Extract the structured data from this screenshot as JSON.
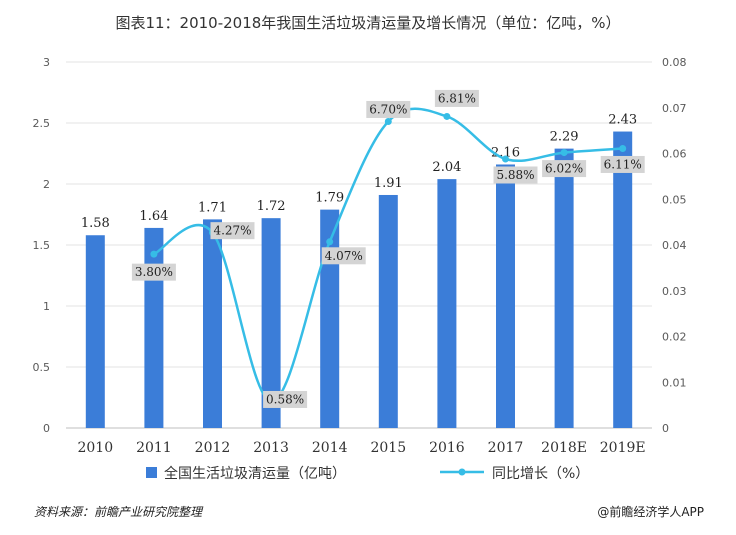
{
  "chart_data": {
    "type": "bar+line",
    "title": "图表11：2010-2018年我国生活垃圾清运量及增长情况（单位：亿吨，%）",
    "categories": [
      "2010",
      "2011",
      "2012",
      "2013",
      "2014",
      "2015",
      "2016",
      "2017",
      "2018E",
      "2019E"
    ],
    "series": [
      {
        "name": "全国生活垃圾清运量（亿吨）",
        "type": "bar",
        "axis": "left",
        "values": [
          1.58,
          1.64,
          1.71,
          1.72,
          1.79,
          1.91,
          2.04,
          2.16,
          2.29,
          2.43
        ],
        "labels": [
          "1.58",
          "1.64",
          "1.71",
          "1.72",
          "1.79",
          "1.91",
          "2.04",
          "2.16",
          "2.29",
          "2.43"
        ],
        "color": "#3b7dd8"
      },
      {
        "name": "同比增长（%）",
        "type": "line",
        "axis": "right",
        "values": [
          null,
          0.038,
          0.0427,
          0.0058,
          0.0407,
          0.067,
          0.0681,
          0.0588,
          0.0602,
          0.0611
        ],
        "labels": [
          "",
          "3.80%",
          "4.27%",
          "0.58%",
          "4.07%",
          "6.70%",
          "6.81%",
          "5.88%",
          "6.02%",
          "6.11%"
        ],
        "color": "#36bde6"
      }
    ],
    "y_left": {
      "range": [
        0,
        3
      ],
      "ticks": [
        0,
        0.5,
        1,
        1.5,
        2,
        2.5,
        3
      ],
      "tick_labels": [
        "0",
        "0.5",
        "1",
        "1.5",
        "2",
        "2.5",
        "3"
      ]
    },
    "y_right": {
      "range": [
        0,
        0.08
      ],
      "ticks": [
        0,
        0.01,
        0.02,
        0.03,
        0.04,
        0.05,
        0.06,
        0.07,
        0.08
      ],
      "tick_labels": [
        "0",
        "0.01",
        "0.02",
        "0.03",
        "0.04",
        "0.05",
        "0.06",
        "0.07",
        "0.08"
      ]
    },
    "grid": true,
    "legend": [
      "全国生活垃圾清运量（亿吨）",
      "同比增长（%）"
    ],
    "legend_position": "bottom"
  },
  "footer": {
    "source": "资料来源：前瞻产业研究院整理",
    "brand": "@前瞻经济学人APP"
  }
}
